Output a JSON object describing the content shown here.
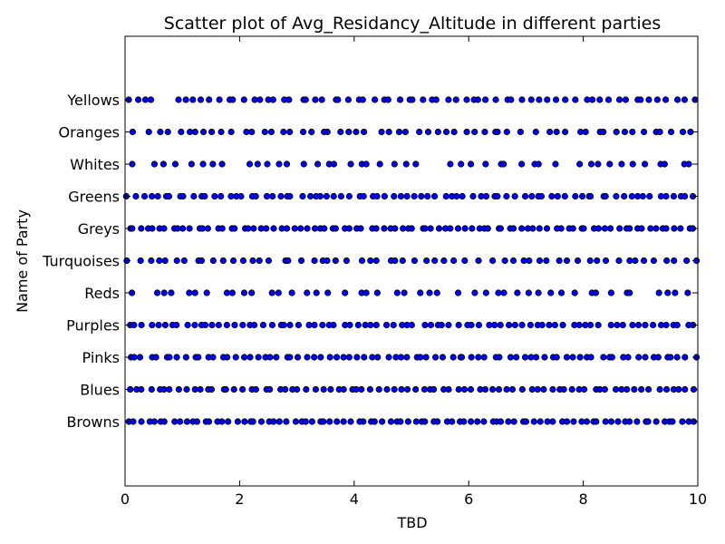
{
  "chart_data": {
    "type": "scatter",
    "title": "Scatter plot of Avg_Residancy_Altitude in different parties",
    "xlabel": "TBD",
    "ylabel": "Name of Party",
    "xlim": [
      0,
      10
    ],
    "xticks": [
      "0",
      "2",
      "4",
      "6",
      "8",
      "10"
    ],
    "categories": [
      "Browns",
      "Blues",
      "Pinks",
      "Purples",
      "Reds",
      "Turquoises",
      "Greys",
      "Greens",
      "Whites",
      "Oranges",
      "Yellows"
    ],
    "grid": false,
    "marker_color": "#0000ff",
    "marker_edge_color": "#000000",
    "series": [
      {
        "category": "Browns",
        "points_per_unit": 9,
        "gaps": []
      },
      {
        "category": "Blues",
        "points_per_unit": 8,
        "gaps": []
      },
      {
        "category": "Pinks",
        "points_per_unit": 8,
        "gaps": []
      },
      {
        "category": "Purples",
        "points_per_unit": 8,
        "gaps": []
      },
      {
        "category": "Reds",
        "points_per_unit": 5,
        "gaps": [
          [
            0.2,
            0.33
          ],
          [
            2.95,
            3.05
          ],
          [
            3.6,
            3.7
          ],
          [
            5.6,
            5.75
          ],
          [
            9.0,
            9.15
          ]
        ]
      },
      {
        "category": "Turquoises",
        "points_per_unit": 6,
        "gaps": [
          [
            1.1,
            1.2
          ],
          [
            3.9,
            4.0
          ],
          [
            6.0,
            6.1
          ]
        ]
      },
      {
        "category": "Greys",
        "points_per_unit": 9,
        "gaps": []
      },
      {
        "category": "Greens",
        "points_per_unit": 8,
        "gaps": []
      },
      {
        "category": "Whites",
        "points_per_unit": 5,
        "gaps": [
          [
            0.35,
            0.45
          ],
          [
            1.8,
            1.9
          ],
          [
            2.95,
            3.1
          ],
          [
            5.2,
            5.35
          ],
          [
            5.45,
            5.55
          ],
          [
            7.75,
            7.85
          ]
        ]
      },
      {
        "category": "Oranges",
        "points_per_unit": 6,
        "gaps": [
          [
            0.15,
            0.3
          ],
          [
            7.0,
            7.1
          ]
        ]
      },
      {
        "category": "Yellows",
        "points_per_unit": 7,
        "gaps": [
          [
            0.6,
            0.8
          ],
          [
            7.7,
            7.8
          ]
        ]
      }
    ]
  }
}
